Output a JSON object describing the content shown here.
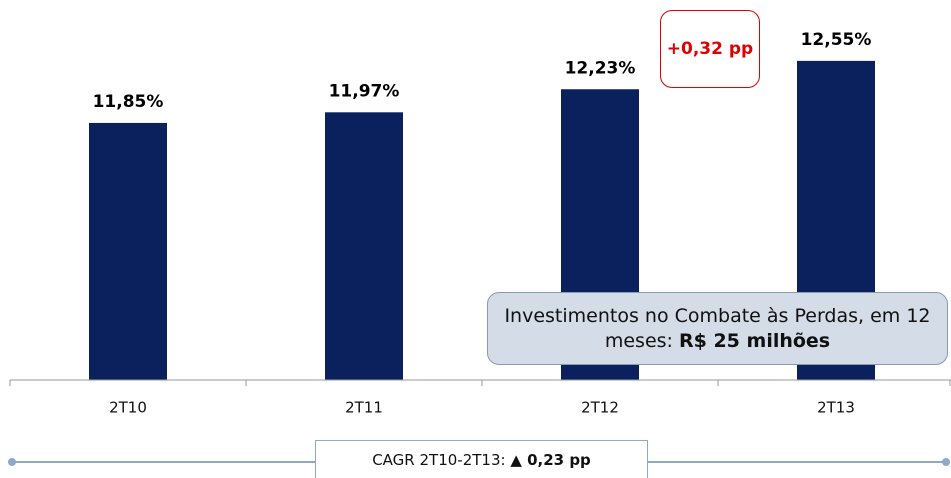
{
  "chart_data": {
    "type": "bar",
    "categories": [
      "2T10",
      "2T11",
      "2T12",
      "2T13"
    ],
    "values": [
      11.85,
      11.97,
      12.23,
      12.55
    ],
    "value_labels": [
      "11,85%",
      "11,97%",
      "12,23%",
      "12,55%"
    ],
    "color": "#0b215e",
    "ylim": [
      8.95,
      13.0
    ],
    "annotations": [
      {
        "text": "+0,32 pp"
      },
      {
        "text": "Investimentos no Combate às Perdas, em 12 meses:",
        "bold": "R$ 25 milhões"
      },
      {
        "text": "CAGR 2T10-2T13:",
        "bold": "▲ 0,23 pp"
      }
    ]
  }
}
